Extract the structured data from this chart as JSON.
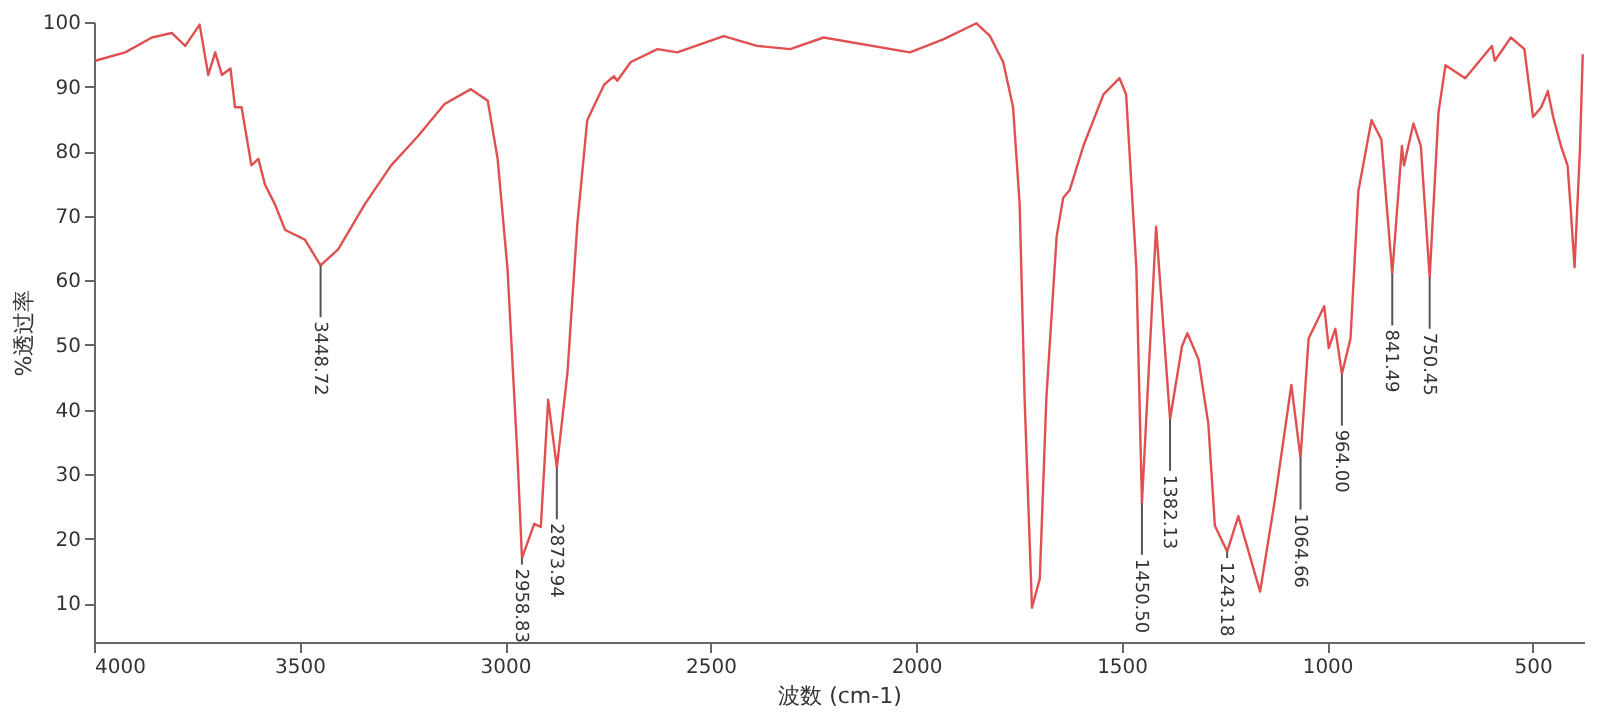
{
  "chart_data": {
    "type": "line",
    "xlabel": "波数 (cm-1)",
    "ylabel": "%透过率",
    "xlim": [
      4000,
      375
    ],
    "ylim": [
      4,
      100
    ],
    "xticks": [
      4000,
      3500,
      3000,
      2500,
      2000,
      1500,
      1000,
      500
    ],
    "yticks": [
      10,
      20,
      30,
      40,
      50,
      60,
      70,
      80,
      90,
      100
    ],
    "grid": false,
    "marker": "none",
    "line_style": "solid",
    "series": [
      {
        "color": "#e05050",
        "x": [
          3997,
          3924,
          3859,
          3811,
          3778,
          3743,
          3722,
          3705,
          3689,
          3668,
          3657,
          3641,
          3617,
          3600,
          3584,
          3560,
          3535,
          3487,
          3448.72,
          3406,
          3341,
          3277,
          3212,
          3147,
          3083,
          3042,
          3018,
          2994,
          2969,
          2958.83,
          2929,
          2913,
          2895,
          2873.94,
          2848,
          2824,
          2800,
          2759,
          2735,
          2727,
          2694,
          2629,
          2581,
          2468,
          2387,
          2306,
          2225,
          2015,
          1934,
          1853,
          1820,
          1788,
          1764,
          1748,
          1736,
          1718,
          1699,
          1683,
          1658,
          1642,
          1626,
          1593,
          1544,
          1505,
          1489,
          1464,
          1450.5,
          1416,
          1382.13,
          1353,
          1340,
          1313,
          1289,
          1273,
          1243.18,
          1216,
          1163,
          1127,
          1087,
          1064.66,
          1045,
          1007,
          996,
          980,
          964,
          943,
          924,
          892,
          868,
          841.49,
          818,
          813,
          790,
          772,
          750.45,
          729,
          712,
          664,
          599,
          592,
          553,
          520,
          499,
          479,
          463,
          450,
          431,
          415,
          407,
          398,
          385,
          378
        ],
        "values": [
          94,
          95.3,
          97.6,
          98.3,
          96.3,
          99.6,
          91.8,
          95.3,
          91.8,
          92.8,
          86.8,
          86.8,
          77.8,
          78.8,
          74.8,
          71.8,
          67.8,
          66.3,
          62.3,
          64.8,
          71.8,
          77.8,
          82.3,
          87.3,
          89.6,
          87.8,
          78.8,
          61.8,
          31.8,
          17,
          22.3,
          21.8,
          41.5,
          31,
          45.8,
          68.8,
          84.8,
          90.3,
          91.6,
          90.9,
          93.8,
          95.8,
          95.3,
          97.8,
          96.3,
          95.8,
          97.6,
          95.3,
          97.3,
          99.8,
          97.8,
          93.8,
          86.8,
          71.8,
          41.8,
          9.3,
          13.8,
          41.8,
          66.8,
          72.8,
          74,
          80.8,
          88.8,
          91.3,
          88.8,
          61.8,
          25.5,
          68.3,
          38.5,
          49.8,
          51.8,
          47.8,
          37.8,
          22,
          18,
          23.5,
          11.8,
          26,
          43.8,
          32.5,
          51,
          56,
          49.5,
          52.5,
          45.5,
          51,
          73.8,
          84.8,
          81.8,
          61,
          80.8,
          77.8,
          84.3,
          80.8,
          60.5,
          86,
          93.3,
          91.3,
          96.3,
          94,
          97.6,
          95.8,
          85.3,
          86.8,
          89.3,
          85.3,
          80.8,
          77.8,
          70.8,
          62,
          80,
          95
        ]
      }
    ],
    "annotations": [
      {
        "text": "3448.72",
        "x": 3448.72,
        "y": 62.3
      },
      {
        "text": "2958.83",
        "x": 2958.83,
        "y": 17
      },
      {
        "text": "2873.94",
        "x": 2873.94,
        "y": 31
      },
      {
        "text": "1450.50",
        "x": 1450.5,
        "y": 25.5
      },
      {
        "text": "1382.13",
        "x": 1382.13,
        "y": 38.5
      },
      {
        "text": "1243.18",
        "x": 1243.18,
        "y": 18
      },
      {
        "text": "1064.66",
        "x": 1064.66,
        "y": 32.5
      },
      {
        "text": "964.00",
        "x": 964,
        "y": 45.5
      },
      {
        "text": "841.49",
        "x": 841.49,
        "y": 61
      },
      {
        "text": "750.45",
        "x": 750.45,
        "y": 60.5
      }
    ]
  }
}
